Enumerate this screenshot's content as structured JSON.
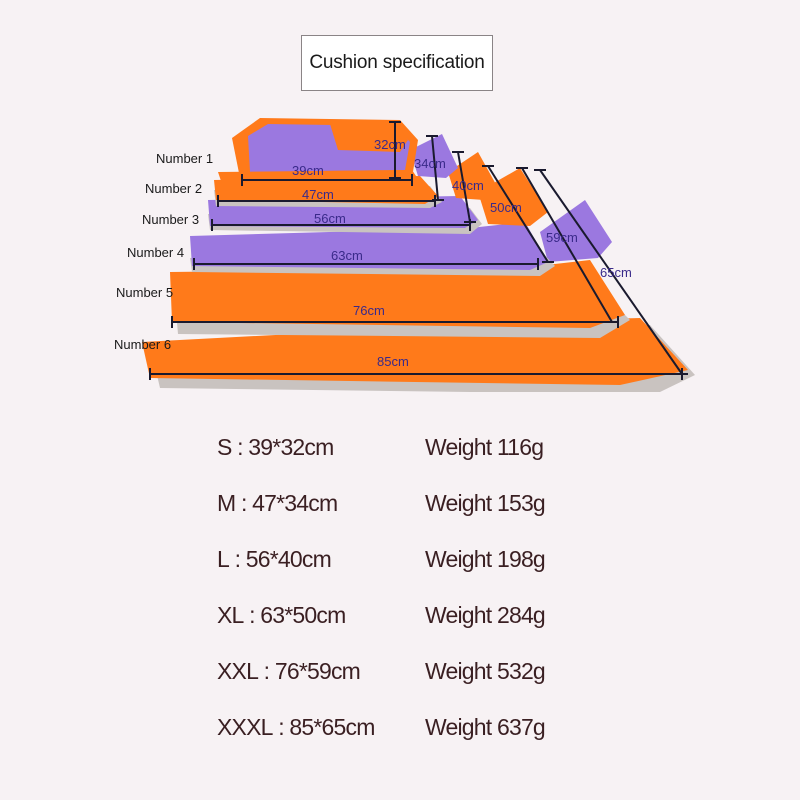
{
  "title": "Cushion specification",
  "cushions": [
    {
      "label": "Number 1",
      "width": "39cm",
      "depth": "32cm"
    },
    {
      "label": "Number 2",
      "width": "47cm",
      "depth": "34cm"
    },
    {
      "label": "Number 3",
      "width": "56cm",
      "depth": "40cm"
    },
    {
      "label": "Number 4",
      "width": "63cm",
      "depth": "50cm"
    },
    {
      "label": "Number 5",
      "width": "76cm",
      "depth": "59cm"
    },
    {
      "label": "Number 6",
      "width": "85cm",
      "depth": "65cm"
    }
  ],
  "specs": [
    {
      "size": "S : 39*32cm",
      "weight": "Weight 116g"
    },
    {
      "size": "M : 47*34cm",
      "weight": "Weight 153g"
    },
    {
      "size": "L : 56*40cm",
      "weight": "Weight 198g"
    },
    {
      "size": "XL : 63*50cm",
      "weight": "Weight 284g"
    },
    {
      "size": "XXL : 76*59cm",
      "weight": "Weight 532g"
    },
    {
      "size": "XXXL : 85*65cm",
      "weight": "Weight 637g"
    }
  ],
  "colors": {
    "orange": "#ff7a1a",
    "purple": "#9b78e0",
    "fleece": "#c9c3c0",
    "line": "#1a1a2e",
    "label_text": "#3a2a8a"
  }
}
